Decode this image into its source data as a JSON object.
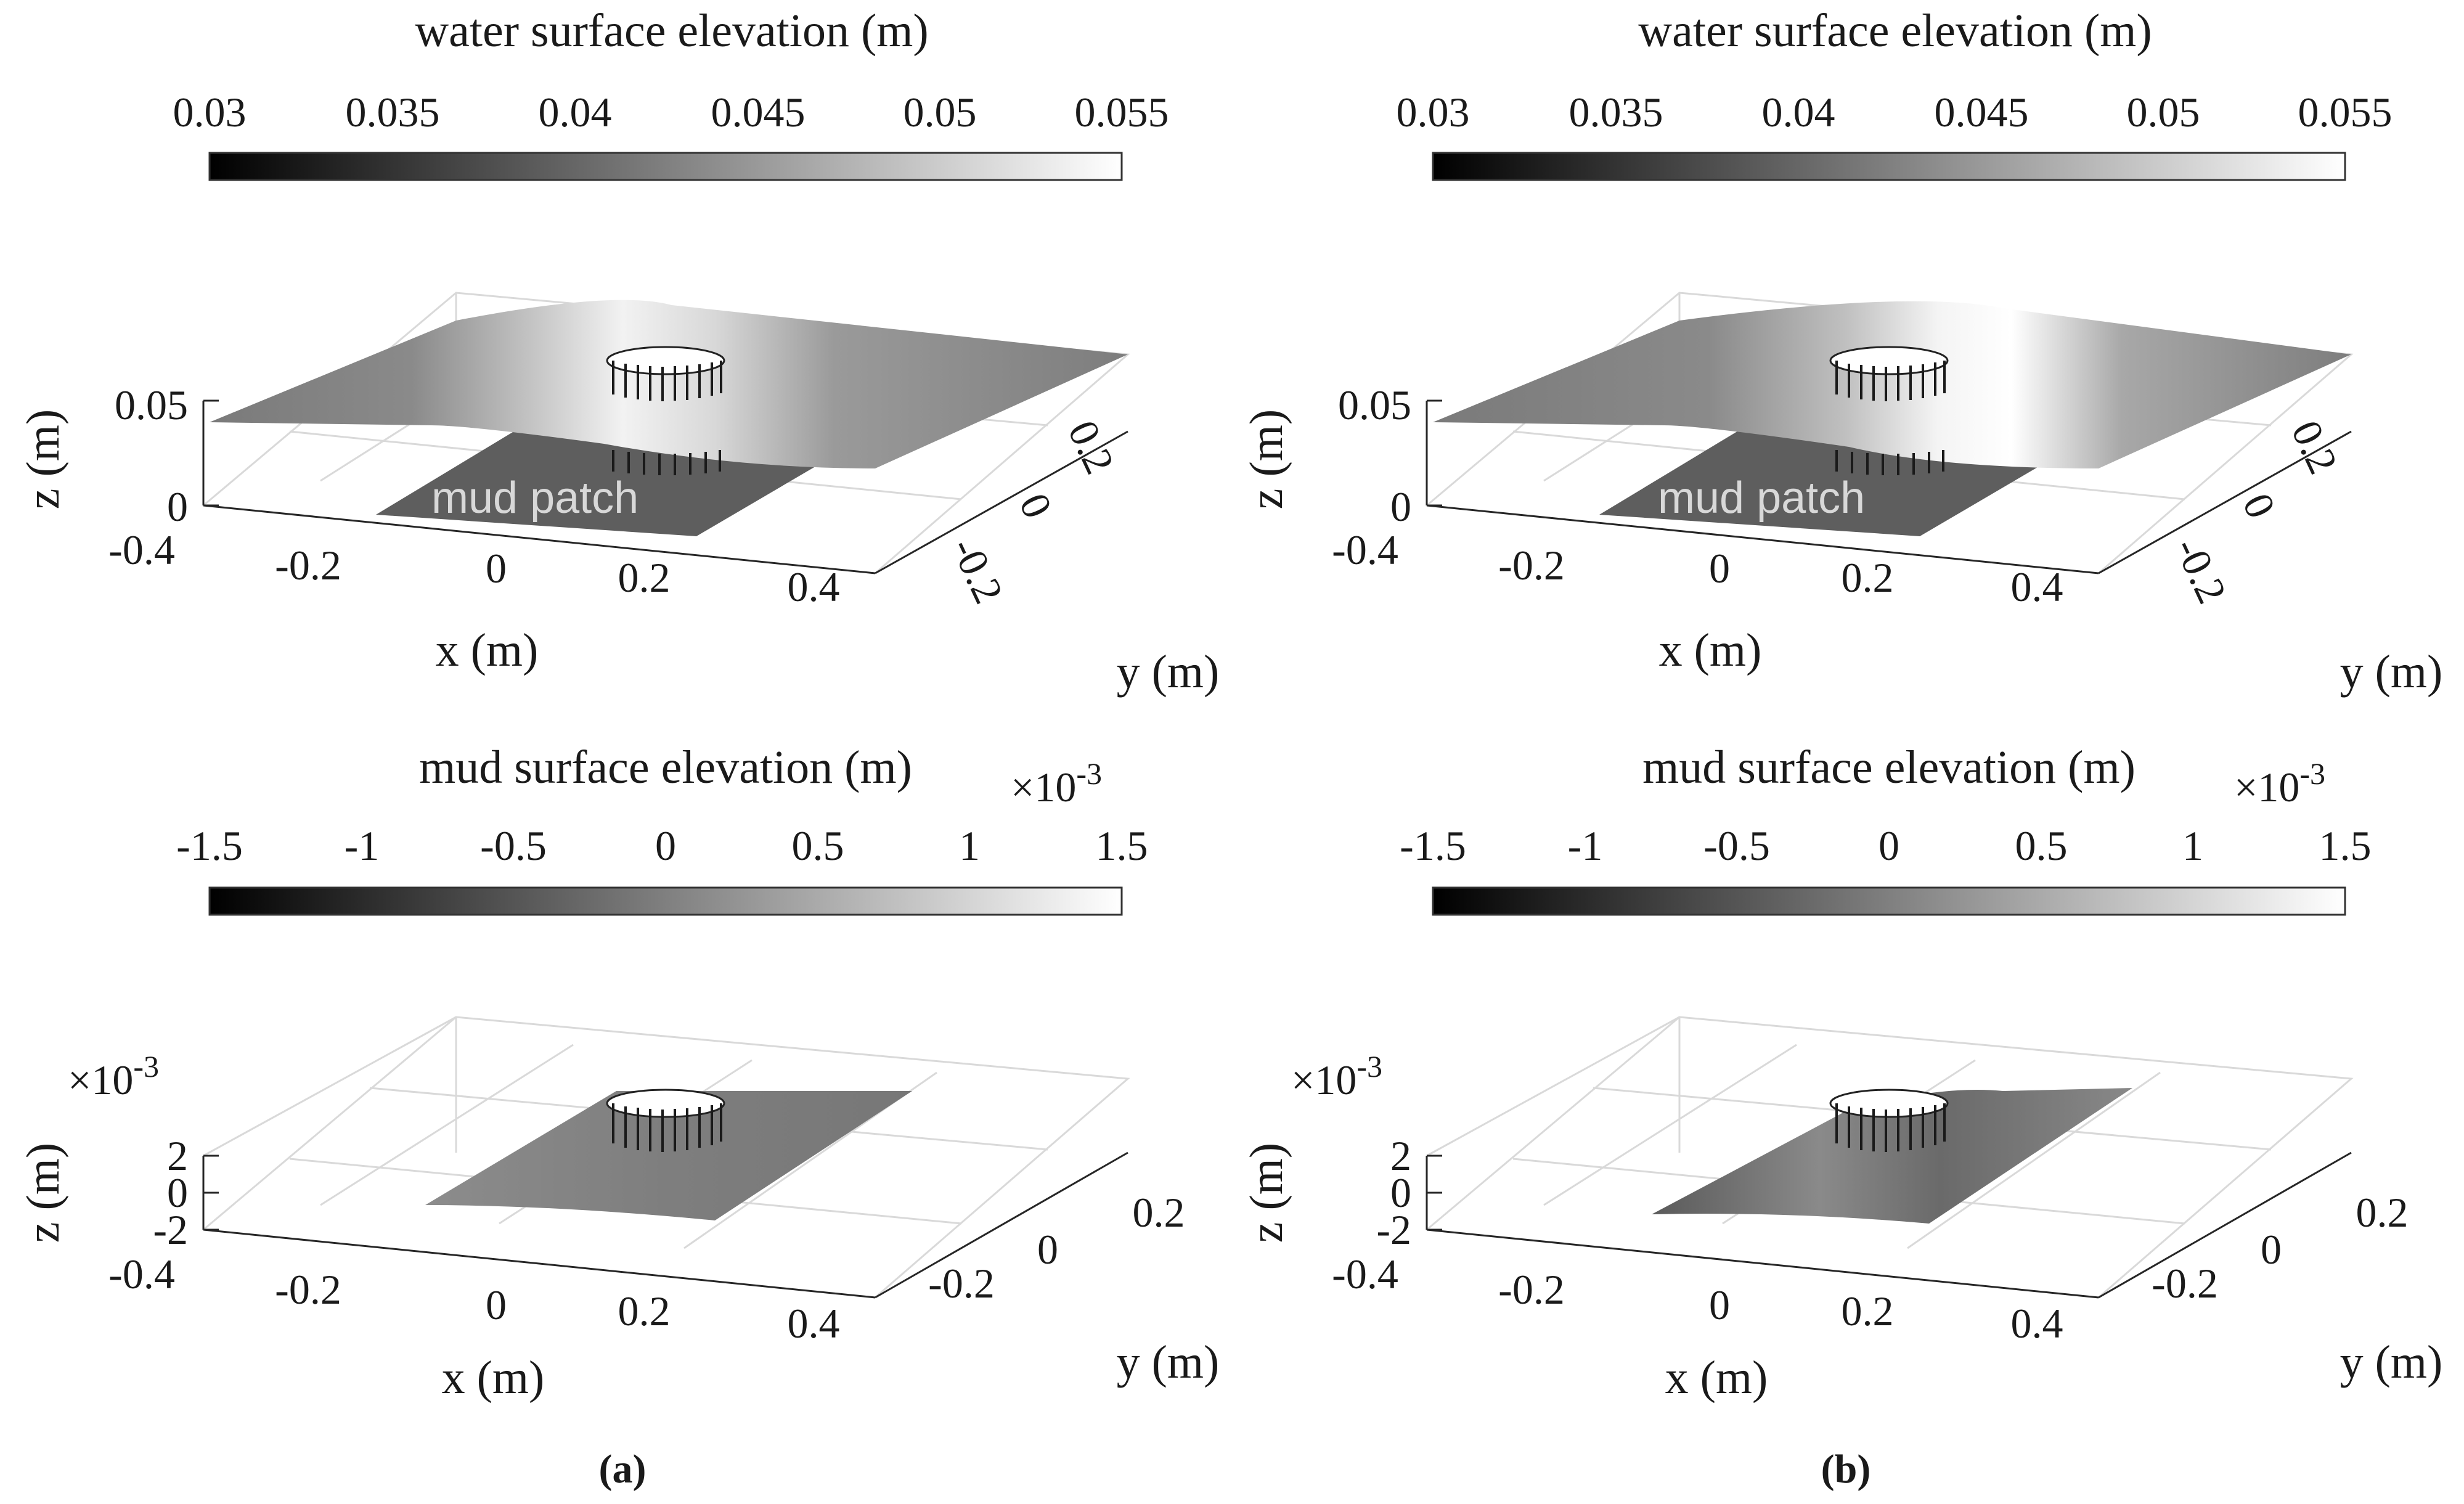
{
  "panel_labels": [
    "(a)",
    "(b)"
  ],
  "chart_data": [
    {
      "type": "surface3d",
      "panel": "a",
      "title": "water surface elevation (m)",
      "colorbar": {
        "min": 0.03,
        "max": 0.055,
        "ticks": [
          "0.03",
          "0.035",
          "0.04",
          "0.045",
          "0.05",
          "0.055"
        ],
        "colormap": "gray"
      },
      "axes": {
        "xlabel": "x (m)",
        "ylabel": "y (m)",
        "zlabel": "z (m)",
        "xticks": [
          "-0.4",
          "-0.2",
          "0",
          "0.2",
          "0.4"
        ],
        "yticks": [
          "-0.2",
          "0",
          "0.2"
        ],
        "zticks": [
          "0",
          "0.05"
        ],
        "zlim": [
          0,
          0.06
        ]
      },
      "annotation": "mud patch",
      "surface": {
        "mean_level": 0.045,
        "peak_level": 0.054,
        "peak_x": -0.05
      }
    },
    {
      "type": "surface3d",
      "panel": "b",
      "title": "water surface elevation (m)",
      "colorbar": {
        "min": 0.03,
        "max": 0.055,
        "ticks": [
          "0.03",
          "0.035",
          "0.04",
          "0.045",
          "0.05",
          "0.055"
        ],
        "colormap": "gray"
      },
      "axes": {
        "xlabel": "x (m)",
        "ylabel": "y (m)",
        "zlabel": "z (m)",
        "xticks": [
          "-0.4",
          "-0.2",
          "0",
          "0.2",
          "0.4"
        ],
        "yticks": [
          "-0.2",
          "0",
          "0.2"
        ],
        "zticks": [
          "0",
          "0.05"
        ],
        "zlim": [
          0,
          0.06
        ]
      },
      "annotation": "mud patch",
      "surface": {
        "mean_level": 0.045,
        "peak_level": 0.055,
        "peak_x": 0.1
      }
    },
    {
      "type": "surface3d",
      "panel": "a",
      "title": "mud surface elevation (m)",
      "colorbar": {
        "min": -1.5,
        "max": 1.5,
        "ticks": [
          "-1.5",
          "-1",
          "-0.5",
          "0",
          "0.5",
          "1",
          "1.5"
        ],
        "colormap": "gray",
        "exponent": "×10",
        "exponent_power": "-3"
      },
      "axes": {
        "xlabel": "x (m)",
        "ylabel": "y (m)",
        "zlabel": "z (m)",
        "xticks": [
          "-0.4",
          "-0.2",
          "0",
          "0.2",
          "0.4"
        ],
        "yticks": [
          "-0.2",
          "0",
          "0.2"
        ],
        "zticks": [
          "-2",
          "0",
          "2"
        ],
        "zexponent": "×10",
        "zexponent_power": "-3",
        "zlim": [
          -2,
          2
        ]
      }
    },
    {
      "type": "surface3d",
      "panel": "b",
      "title": "mud surface elevation (m)",
      "colorbar": {
        "min": -1.5,
        "max": 1.5,
        "ticks": [
          "-1.5",
          "-1",
          "-0.5",
          "0",
          "0.5",
          "1",
          "1.5"
        ],
        "colormap": "gray",
        "exponent": "×10",
        "exponent_power": "-3"
      },
      "axes": {
        "xlabel": "x (m)",
        "ylabel": "y (m)",
        "zlabel": "z (m)",
        "xticks": [
          "-0.4",
          "-0.2",
          "0",
          "0.2",
          "0.4"
        ],
        "yticks": [
          "-0.2",
          "0",
          "0.2"
        ],
        "zticks": [
          "-2",
          "0",
          "2"
        ],
        "zexponent": "×10",
        "zexponent_power": "-3",
        "zlim": [
          -2,
          2
        ]
      }
    }
  ]
}
